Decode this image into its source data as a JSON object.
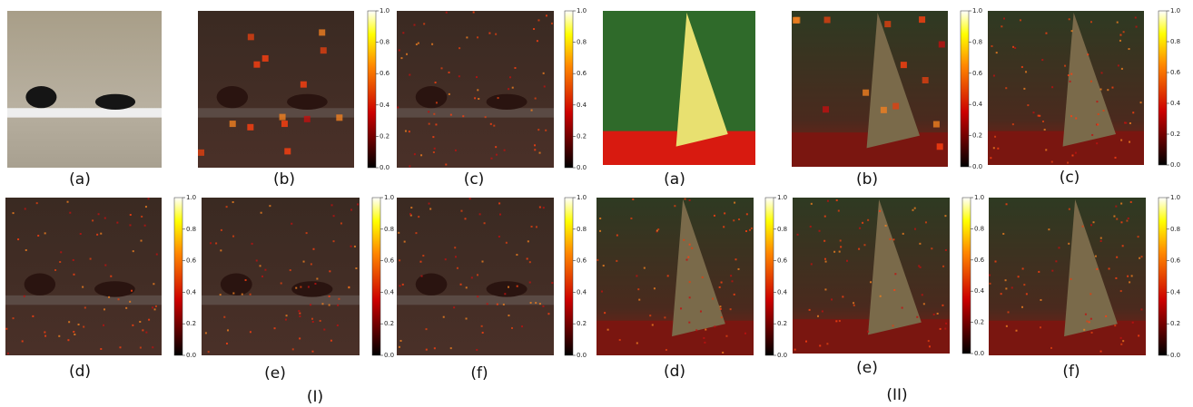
{
  "colorbar_ticks": [
    "0.0",
    "0.2",
    "0.4",
    "0.6",
    "0.8",
    "1.0"
  ],
  "groups": [
    {
      "label": "(I)",
      "panels": [
        "(a)",
        "(b)",
        "(c)",
        "(d)",
        "(e)",
        "(f)"
      ]
    },
    {
      "label": "(II)",
      "panels": [
        "(a)",
        "(b)",
        "(c)",
        "(d)",
        "(e)",
        "(f)"
      ]
    }
  ]
}
